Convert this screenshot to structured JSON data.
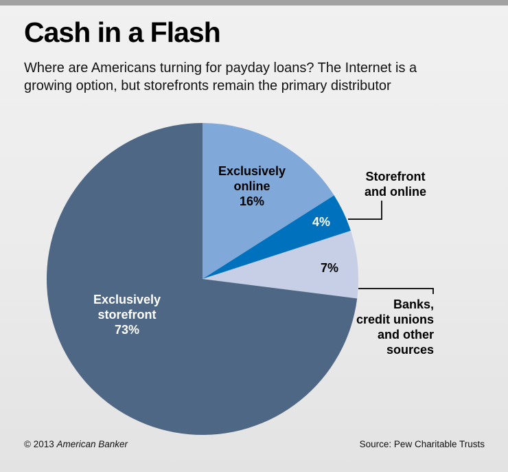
{
  "header": {
    "title": "Cash in a Flash",
    "subtitle_line1": "Where are Americans turning for payday loans? The Internet is a",
    "subtitle_line2": "growing option, but storefronts remain the primary distributor"
  },
  "chart_data": {
    "type": "pie",
    "title": "Cash in a Flash",
    "subtitle": "Where are Americans turning for payday loans? The Internet is a growing option, but storefronts remain the primary distributor",
    "start_angle_deg": 0,
    "direction": "clockwise",
    "legend_position": "none",
    "slices": [
      {
        "label": "Exclusively online",
        "value": 16,
        "color": "#80a8d8",
        "label_color": "#000000",
        "label_position": "inside"
      },
      {
        "label": "Storefront and online",
        "value": 4,
        "color": "#0071bc",
        "label_color": "#ffffff",
        "label_position": "outside"
      },
      {
        "label": "Banks, credit unions and other sources",
        "value": 7,
        "color": "#c6cfe5",
        "label_color": "#000000",
        "label_position": "outside"
      },
      {
        "label": "Exclusively storefront",
        "value": 73,
        "color": "#4e6784",
        "label_color": "#ffffff",
        "label_position": "inside"
      }
    ]
  },
  "labels": {
    "online": {
      "line1": "Exclusively",
      "line2": "online",
      "pct": "16%"
    },
    "storefront_online": {
      "line1": "Storefront",
      "line2": "and online",
      "pct": "4%"
    },
    "banks": {
      "line1": "Banks,",
      "line2": "credit unions",
      "line3": "and other",
      "line4": "sources",
      "pct": "7%"
    },
    "storefront": {
      "line1": "Exclusively",
      "line2": "storefront",
      "pct": "73%"
    }
  },
  "footer": {
    "copyright_prefix": "© 2013 ",
    "copyright_brand": "American Banker",
    "source": "Source: Pew Charitable Trusts"
  }
}
